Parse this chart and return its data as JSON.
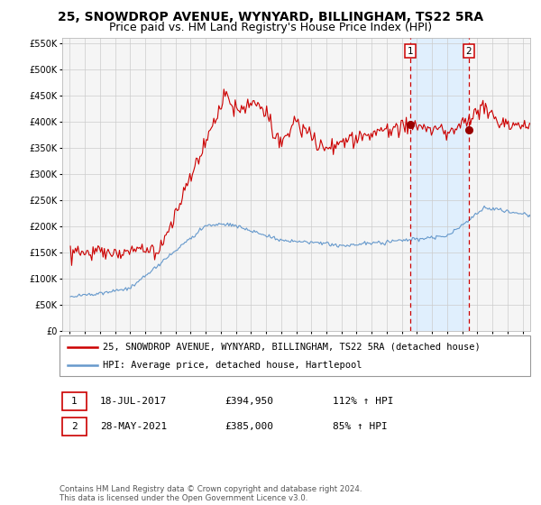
{
  "title": "25, SNOWDROP AVENUE, WYNYARD, BILLINGHAM, TS22 5RA",
  "subtitle": "Price paid vs. HM Land Registry's House Price Index (HPI)",
  "red_label": "25, SNOWDROP AVENUE, WYNYARD, BILLINGHAM, TS22 5RA (detached house)",
  "blue_label": "HPI: Average price, detached house, Hartlepool",
  "annotation1_label": "1",
  "annotation1_date": "18-JUL-2017",
  "annotation1_price": "£394,950",
  "annotation1_hpi": "112% ↑ HPI",
  "annotation2_label": "2",
  "annotation2_date": "28-MAY-2021",
  "annotation2_price": "£385,000",
  "annotation2_hpi": "85% ↑ HPI",
  "footnote": "Contains HM Land Registry data © Crown copyright and database right 2024.\nThis data is licensed under the Open Government Licence v3.0.",
  "point1_x": 2017.55,
  "point1_y": 394950,
  "point2_x": 2021.42,
  "point2_y": 385000,
  "vline1_x": 2017.55,
  "vline2_x": 2021.42,
  "ylim": [
    0,
    560000
  ],
  "xlim": [
    1994.5,
    2025.5
  ],
  "red_color": "#cc0000",
  "blue_color": "#6699cc",
  "dot_color": "#990000",
  "vline_color": "#cc0000",
  "shade_color": "#ddeeff",
  "grid_color": "#cccccc",
  "bg_color": "#f5f5f5",
  "title_fontsize": 10,
  "subtitle_fontsize": 9,
  "axis_fontsize": 7.5,
  "legend_fontsize": 7.5
}
